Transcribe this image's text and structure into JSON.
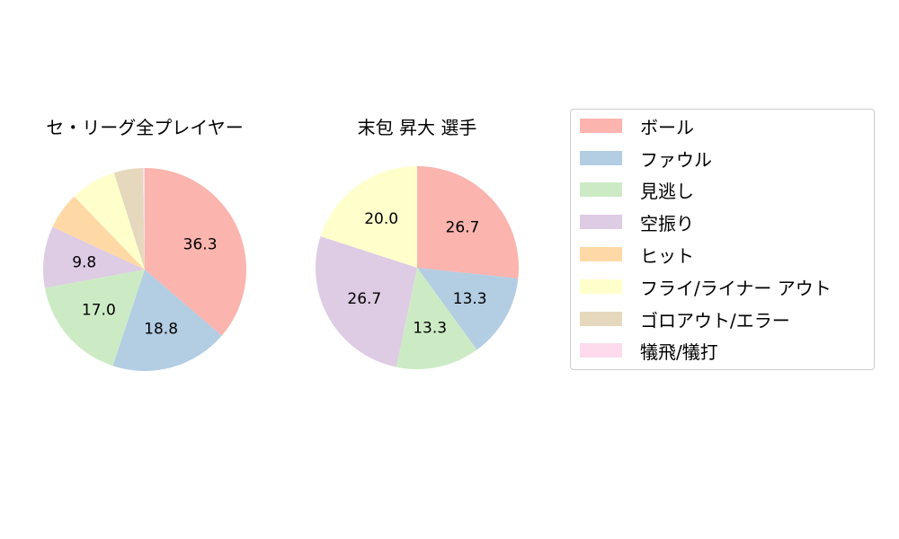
{
  "chart_data": [
    {
      "type": "pie",
      "title": "セ・リーグ全プレイヤー",
      "categories": [
        "ボール",
        "ファウル",
        "見逃し",
        "空振り",
        "ヒット",
        "フライ/ライナー アウト",
        "ゴロアウト/エラー",
        "犠飛/犠打"
      ],
      "values": [
        36.3,
        18.8,
        17.0,
        9.8,
        5.9,
        7.3,
        4.6,
        0.3
      ],
      "labels_shown": [
        "36.3",
        "18.8",
        "17.0",
        "9.8",
        "",
        "",
        "",
        ""
      ],
      "colors": [
        "#fbb4ae",
        "#b3cde3",
        "#ccebc5",
        "#decbe4",
        "#fed9a6",
        "#ffffcc",
        "#e5d8bd",
        "#fddaec"
      ],
      "start_angle": 90,
      "direction": "clockwise"
    },
    {
      "type": "pie",
      "title": "末包 昇大  選手",
      "categories": [
        "ボール",
        "ファウル",
        "見逃し",
        "空振り",
        "ヒット",
        "フライ/ライナー アウト",
        "ゴロアウト/エラー",
        "犠飛/犠打"
      ],
      "values": [
        26.7,
        13.3,
        13.3,
        26.7,
        0,
        20.0,
        0,
        0
      ],
      "labels_shown": [
        "26.7",
        "13.3",
        "13.3",
        "26.7",
        "",
        "20.0",
        "",
        ""
      ],
      "colors": [
        "#fbb4ae",
        "#b3cde3",
        "#ccebc5",
        "#decbe4",
        "#fed9a6",
        "#ffffcc",
        "#e5d8bd",
        "#fddaec"
      ],
      "start_angle": 90,
      "direction": "clockwise"
    }
  ],
  "titles": {
    "left": "セ・リーグ全プレイヤー",
    "right": "末包 昇大  選手"
  },
  "legend": {
    "items": [
      {
        "label": "ボール",
        "color": "#fbb4ae"
      },
      {
        "label": "ファウル",
        "color": "#b3cde3"
      },
      {
        "label": "見逃し",
        "color": "#ccebc5"
      },
      {
        "label": "空振り",
        "color": "#decbe4"
      },
      {
        "label": "ヒット",
        "color": "#fed9a6"
      },
      {
        "label": "フライ/ライナー アウト",
        "color": "#ffffcc"
      },
      {
        "label": "ゴロアウト/エラー",
        "color": "#e5d8bd"
      },
      {
        "label": "犠飛/犠打",
        "color": "#fddaec"
      }
    ]
  }
}
